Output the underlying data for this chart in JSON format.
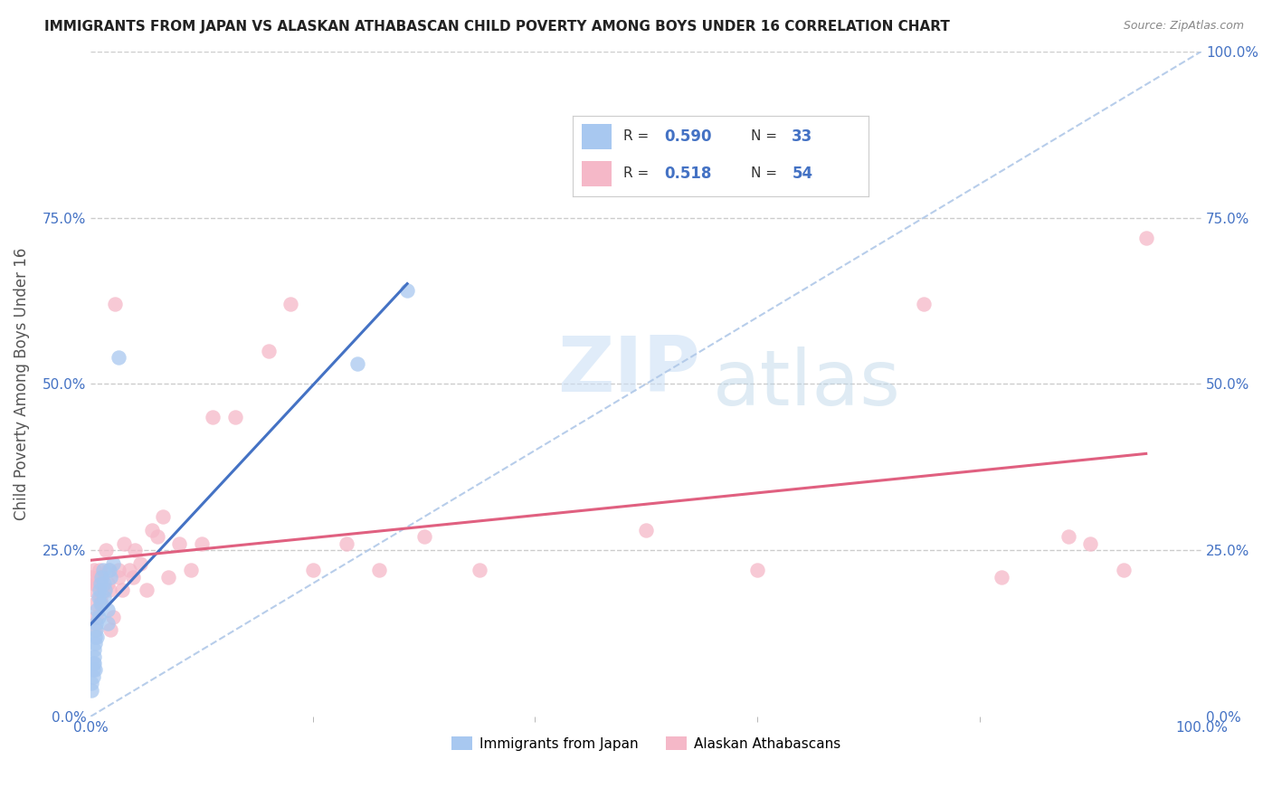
{
  "title": "IMMIGRANTS FROM JAPAN VS ALASKAN ATHABASCAN CHILD POVERTY AMONG BOYS UNDER 16 CORRELATION CHART",
  "source": "Source: ZipAtlas.com",
  "ylabel": "Child Poverty Among Boys Under 16",
  "background_color": "#ffffff",
  "watermark_zip": "ZIP",
  "watermark_atlas": "atlas",
  "color_japan": "#a8c8f0",
  "color_athabascan": "#f5b8c8",
  "line_color_japan": "#4472c4",
  "line_color_athabascan": "#e06080",
  "diagonal_color": "#b0c8e8",
  "ytick_positions": [
    0.0,
    0.25,
    0.5,
    0.75,
    1.0
  ],
  "ytick_labels_left": [
    "0.0%",
    "25.0%",
    "50.0%",
    "75.0%"
  ],
  "ytick_labels_right": [
    "100.0%",
    "75.0%",
    "50.0%",
    "25.0%",
    "0.0%"
  ],
  "xtick_positions": [
    0.0,
    1.0
  ],
  "xtick_labels": [
    "0.0%",
    "100.0%"
  ],
  "japan_x": [
    0.001,
    0.001,
    0.002,
    0.002,
    0.002,
    0.003,
    0.003,
    0.003,
    0.004,
    0.004,
    0.004,
    0.005,
    0.005,
    0.006,
    0.006,
    0.007,
    0.007,
    0.008,
    0.009,
    0.009,
    0.01,
    0.011,
    0.012,
    0.012,
    0.013,
    0.015,
    0.015,
    0.017,
    0.018,
    0.02,
    0.025,
    0.24,
    0.285
  ],
  "japan_y": [
    0.05,
    0.04,
    0.08,
    0.07,
    0.06,
    0.1,
    0.09,
    0.08,
    0.12,
    0.11,
    0.07,
    0.14,
    0.13,
    0.16,
    0.12,
    0.18,
    0.15,
    0.19,
    0.2,
    0.17,
    0.21,
    0.22,
    0.18,
    0.2,
    0.19,
    0.16,
    0.14,
    0.22,
    0.21,
    0.23,
    0.54,
    0.53,
    0.64
  ],
  "athabascan_x": [
    0.001,
    0.002,
    0.003,
    0.003,
    0.004,
    0.004,
    0.005,
    0.006,
    0.007,
    0.008,
    0.009,
    0.01,
    0.01,
    0.012,
    0.014,
    0.015,
    0.016,
    0.017,
    0.018,
    0.02,
    0.022,
    0.025,
    0.025,
    0.028,
    0.03,
    0.035,
    0.038,
    0.04,
    0.045,
    0.05,
    0.055,
    0.06,
    0.065,
    0.07,
    0.08,
    0.09,
    0.1,
    0.11,
    0.13,
    0.16,
    0.18,
    0.2,
    0.23,
    0.26,
    0.3,
    0.35,
    0.5,
    0.6,
    0.75,
    0.82,
    0.88,
    0.9,
    0.93,
    0.95
  ],
  "athabascan_y": [
    0.21,
    0.19,
    0.22,
    0.2,
    0.17,
    0.13,
    0.15,
    0.2,
    0.21,
    0.22,
    0.18,
    0.21,
    0.17,
    0.19,
    0.25,
    0.2,
    0.22,
    0.19,
    0.13,
    0.15,
    0.62,
    0.22,
    0.21,
    0.19,
    0.26,
    0.22,
    0.21,
    0.25,
    0.23,
    0.19,
    0.28,
    0.27,
    0.3,
    0.21,
    0.26,
    0.22,
    0.26,
    0.45,
    0.45,
    0.55,
    0.62,
    0.22,
    0.26,
    0.22,
    0.27,
    0.22,
    0.28,
    0.22,
    0.62,
    0.21,
    0.27,
    0.26,
    0.22,
    0.72
  ]
}
